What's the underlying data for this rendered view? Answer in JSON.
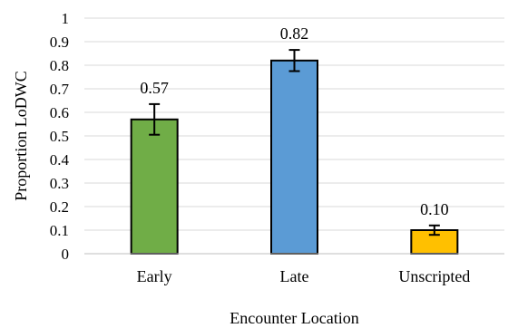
{
  "chart_data": {
    "type": "bar",
    "categories": [
      "Early",
      "Late",
      "Unscripted"
    ],
    "values": [
      0.57,
      0.82,
      0.1
    ],
    "data_labels": [
      "0.57",
      "0.82",
      "0.10"
    ],
    "error": [
      0.065,
      0.045,
      0.02
    ],
    "colors": [
      "#70ad47",
      "#5b9bd5",
      "#ffc000"
    ],
    "title": "",
    "xlabel": "Encounter Location",
    "ylabel": "Proportion LoDWC",
    "ylim": [
      0,
      1
    ],
    "yticks": [
      "0",
      "0.1",
      "0.2",
      "0.3",
      "0.4",
      "0.5",
      "0.6",
      "0.7",
      "0.8",
      "0.9",
      "1"
    ],
    "grid": true,
    "legend": "none"
  }
}
